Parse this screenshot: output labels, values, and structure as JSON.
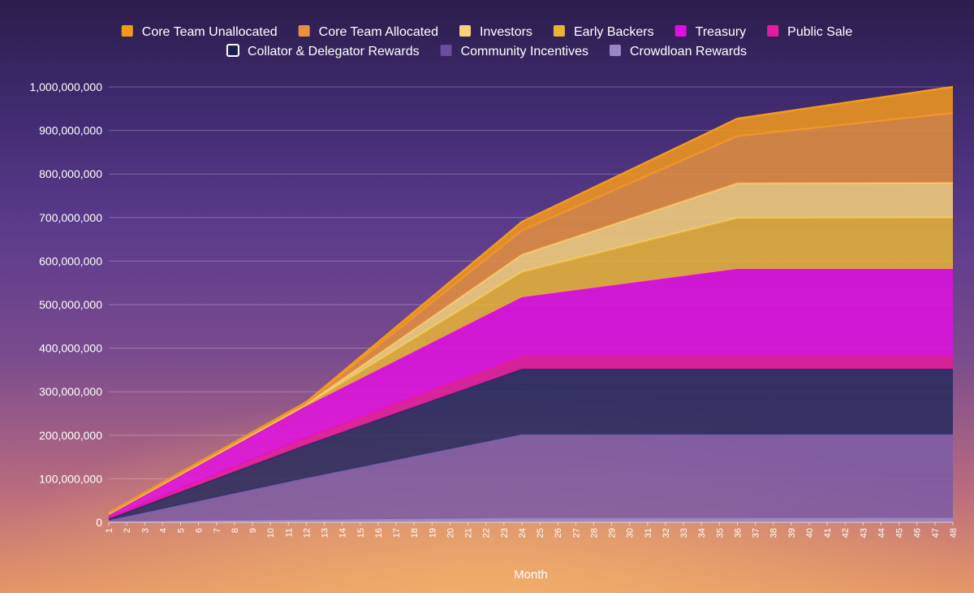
{
  "chart_data": {
    "type": "area",
    "stacked": true,
    "title": "",
    "xlabel": "Month",
    "ylabel": "",
    "xlim": [
      1,
      48
    ],
    "ylim": [
      0,
      1000000000
    ],
    "grid": true,
    "legend_position": "top",
    "x_ticks": [
      "1",
      "2",
      "3",
      "4",
      "5",
      "6",
      "7",
      "8",
      "9",
      "10",
      "11",
      "12",
      "13",
      "14",
      "15",
      "16",
      "17",
      "18",
      "19",
      "20",
      "21",
      "22",
      "23",
      "24",
      "25",
      "26",
      "27",
      "28",
      "29",
      "30",
      "31",
      "32",
      "33",
      "34",
      "35",
      "36",
      "37",
      "38",
      "39",
      "40",
      "41",
      "42",
      "43",
      "44",
      "45",
      "46",
      "47",
      "48"
    ],
    "y_ticks": [
      "0",
      "100,000,000",
      "200,000,000",
      "300,000,000",
      "400,000,000",
      "500,000,000",
      "600,000,000",
      "700,000,000",
      "800,000,000",
      "900,000,000",
      "1,000,000,000"
    ],
    "x": [
      1,
      12,
      24,
      36,
      48
    ],
    "series": [
      {
        "name": "Crowdloan Rewards",
        "color": "#9a86c6",
        "values": [
          2000000,
          6000000,
          10000000,
          10000000,
          10000000
        ]
      },
      {
        "name": "Community Incentives",
        "color": "#7a5aa6",
        "values": [
          3000000,
          96000000,
          192000000,
          192000000,
          192000000
        ]
      },
      {
        "name": "Collator & Delegator Rewards",
        "color": "#262a5e",
        "values": [
          3000000,
          76000000,
          150000000,
          150000000,
          150000000
        ]
      },
      {
        "name": "Public Sale",
        "color": "#e41b9e",
        "values": [
          3000000,
          17000000,
          30000000,
          30000000,
          30000000
        ]
      },
      {
        "name": "Treasury",
        "color": "#e010e0",
        "values": [
          7000000,
          72000000,
          135000000,
          200000000,
          200000000
        ]
      },
      {
        "name": "Early Backers",
        "color": "#e7b535",
        "values": [
          1000000,
          3000000,
          58000000,
          117000000,
          118000000
        ]
      },
      {
        "name": "Investors",
        "color": "#f7d27a",
        "values": [
          1000000,
          2000000,
          40000000,
          80000000,
          80000000
        ]
      },
      {
        "name": "Core Team Allocated",
        "color": "#e5913d",
        "values": [
          1000000,
          2000000,
          55000000,
          108000000,
          160000000
        ]
      },
      {
        "name": "Core Team Unallocated",
        "color": "#f49a1b",
        "values": [
          1000000,
          2000000,
          20000000,
          40000000,
          60000000
        ]
      }
    ],
    "legend": [
      {
        "name": "Core Team Unallocated",
        "color": "#f49a1b"
      },
      {
        "name": "Core Team Allocated",
        "color": "#e5913d"
      },
      {
        "name": "Investors",
        "color": "#f7d27a"
      },
      {
        "name": "Early Backers",
        "color": "#e7b535"
      },
      {
        "name": "Treasury",
        "color": "#e010e0"
      },
      {
        "name": "Public Sale",
        "color": "#e41b9e"
      },
      {
        "name": "Collator & Delegator Rewards",
        "color": "#1a1f4f"
      },
      {
        "name": "Community Incentives",
        "color": "#6a4ca0"
      },
      {
        "name": "Crowdloan Rewards",
        "color": "#9a86c6"
      }
    ]
  }
}
